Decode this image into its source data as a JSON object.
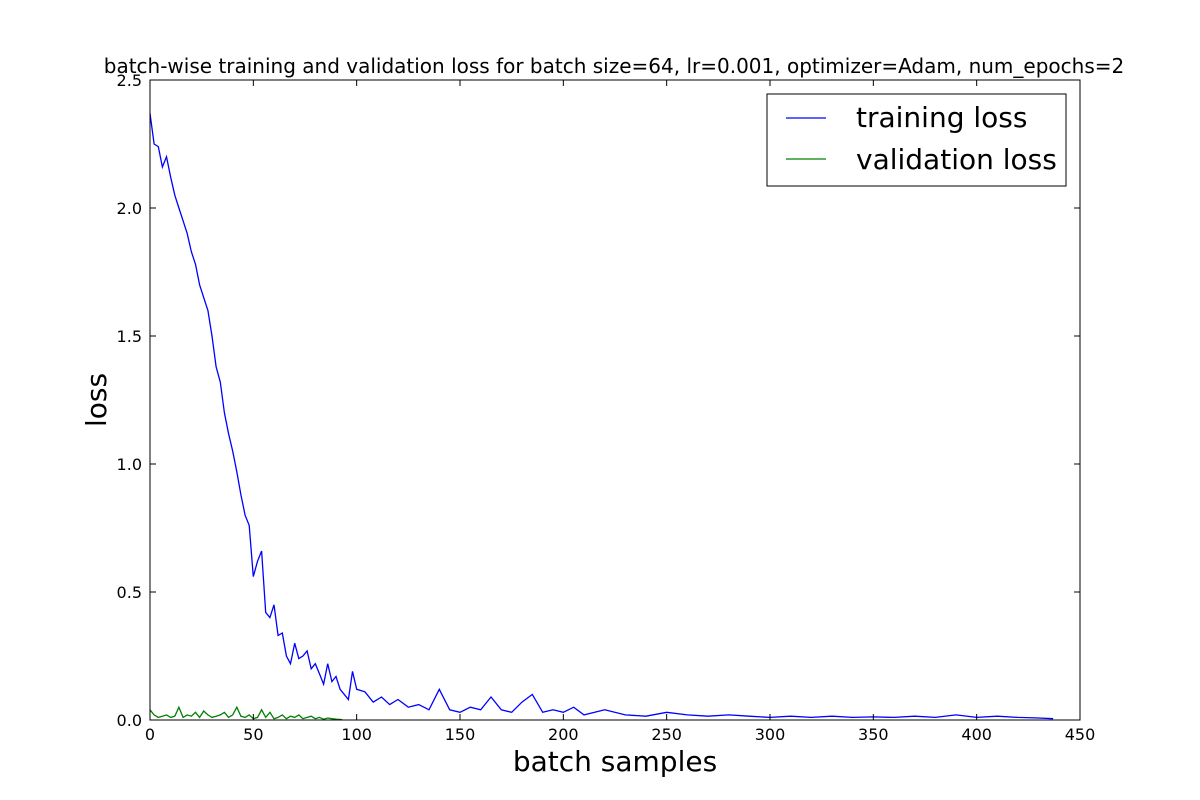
{
  "chart_data": {
    "type": "line",
    "title": "batch-wise training and validation loss for batch size=64, lr=0.001, optimizer=Adam, num_epochs=2",
    "xlabel": "batch samples",
    "ylabel": "loss",
    "xlim": [
      0,
      450
    ],
    "ylim": [
      0.0,
      2.5
    ],
    "xticks": [
      "0",
      "50",
      "100",
      "150",
      "200",
      "250",
      "300",
      "350",
      "400",
      "450"
    ],
    "yticks": [
      "0.0",
      "0.5",
      "1.0",
      "1.5",
      "2.0",
      "2.5"
    ],
    "grid": false,
    "legend_position": "top-right",
    "series": [
      {
        "name": "training loss",
        "color": "#0000ff",
        "x": [
          0,
          2,
          4,
          6,
          8,
          10,
          12,
          14,
          16,
          18,
          20,
          22,
          24,
          26,
          28,
          30,
          32,
          34,
          36,
          38,
          40,
          42,
          44,
          46,
          48,
          50,
          52,
          54,
          56,
          58,
          60,
          62,
          64,
          66,
          68,
          70,
          72,
          74,
          76,
          78,
          80,
          82,
          84,
          86,
          88,
          90,
          92,
          94,
          96,
          98,
          100,
          104,
          108,
          112,
          116,
          120,
          125,
          130,
          135,
          140,
          145,
          150,
          155,
          160,
          165,
          170,
          175,
          180,
          185,
          190,
          195,
          200,
          205,
          210,
          220,
          230,
          240,
          250,
          260,
          270,
          280,
          290,
          300,
          310,
          320,
          330,
          340,
          350,
          360,
          370,
          380,
          390,
          400,
          410,
          420,
          430,
          437
        ],
        "y": [
          2.37,
          2.25,
          2.24,
          2.16,
          2.2,
          2.12,
          2.05,
          2.0,
          1.95,
          1.9,
          1.83,
          1.78,
          1.7,
          1.65,
          1.6,
          1.5,
          1.38,
          1.32,
          1.2,
          1.12,
          1.05,
          0.97,
          0.88,
          0.8,
          0.76,
          0.56,
          0.62,
          0.66,
          0.42,
          0.4,
          0.45,
          0.33,
          0.34,
          0.25,
          0.22,
          0.3,
          0.24,
          0.25,
          0.27,
          0.2,
          0.22,
          0.18,
          0.14,
          0.22,
          0.15,
          0.17,
          0.12,
          0.1,
          0.08,
          0.19,
          0.12,
          0.11,
          0.07,
          0.09,
          0.06,
          0.08,
          0.05,
          0.06,
          0.04,
          0.12,
          0.04,
          0.03,
          0.05,
          0.04,
          0.09,
          0.04,
          0.03,
          0.07,
          0.1,
          0.03,
          0.04,
          0.03,
          0.05,
          0.02,
          0.04,
          0.02,
          0.015,
          0.03,
          0.02,
          0.015,
          0.02,
          0.015,
          0.01,
          0.015,
          0.01,
          0.015,
          0.01,
          0.012,
          0.01,
          0.015,
          0.01,
          0.02,
          0.01,
          0.015,
          0.01,
          0.008,
          0.005
        ]
      },
      {
        "name": "validation loss",
        "color": "#008000",
        "x": [
          0,
          2,
          4,
          6,
          8,
          10,
          12,
          14,
          16,
          18,
          20,
          22,
          24,
          26,
          28,
          30,
          32,
          34,
          36,
          38,
          40,
          42,
          44,
          46,
          48,
          50,
          52,
          54,
          56,
          58,
          60,
          62,
          64,
          66,
          68,
          70,
          72,
          74,
          76,
          78,
          80,
          82,
          84,
          86,
          88,
          90,
          93
        ],
        "y": [
          0.04,
          0.02,
          0.01,
          0.015,
          0.02,
          0.01,
          0.015,
          0.05,
          0.01,
          0.02,
          0.015,
          0.03,
          0.01,
          0.035,
          0.02,
          0.01,
          0.015,
          0.02,
          0.03,
          0.01,
          0.02,
          0.05,
          0.015,
          0.01,
          0.02,
          0.005,
          0.01,
          0.04,
          0.01,
          0.03,
          0.005,
          0.01,
          0.02,
          0.005,
          0.015,
          0.01,
          0.02,
          0.005,
          0.01,
          0.015,
          0.005,
          0.01,
          0.003,
          0.008,
          0.005,
          0.003,
          0.001
        ]
      }
    ]
  }
}
